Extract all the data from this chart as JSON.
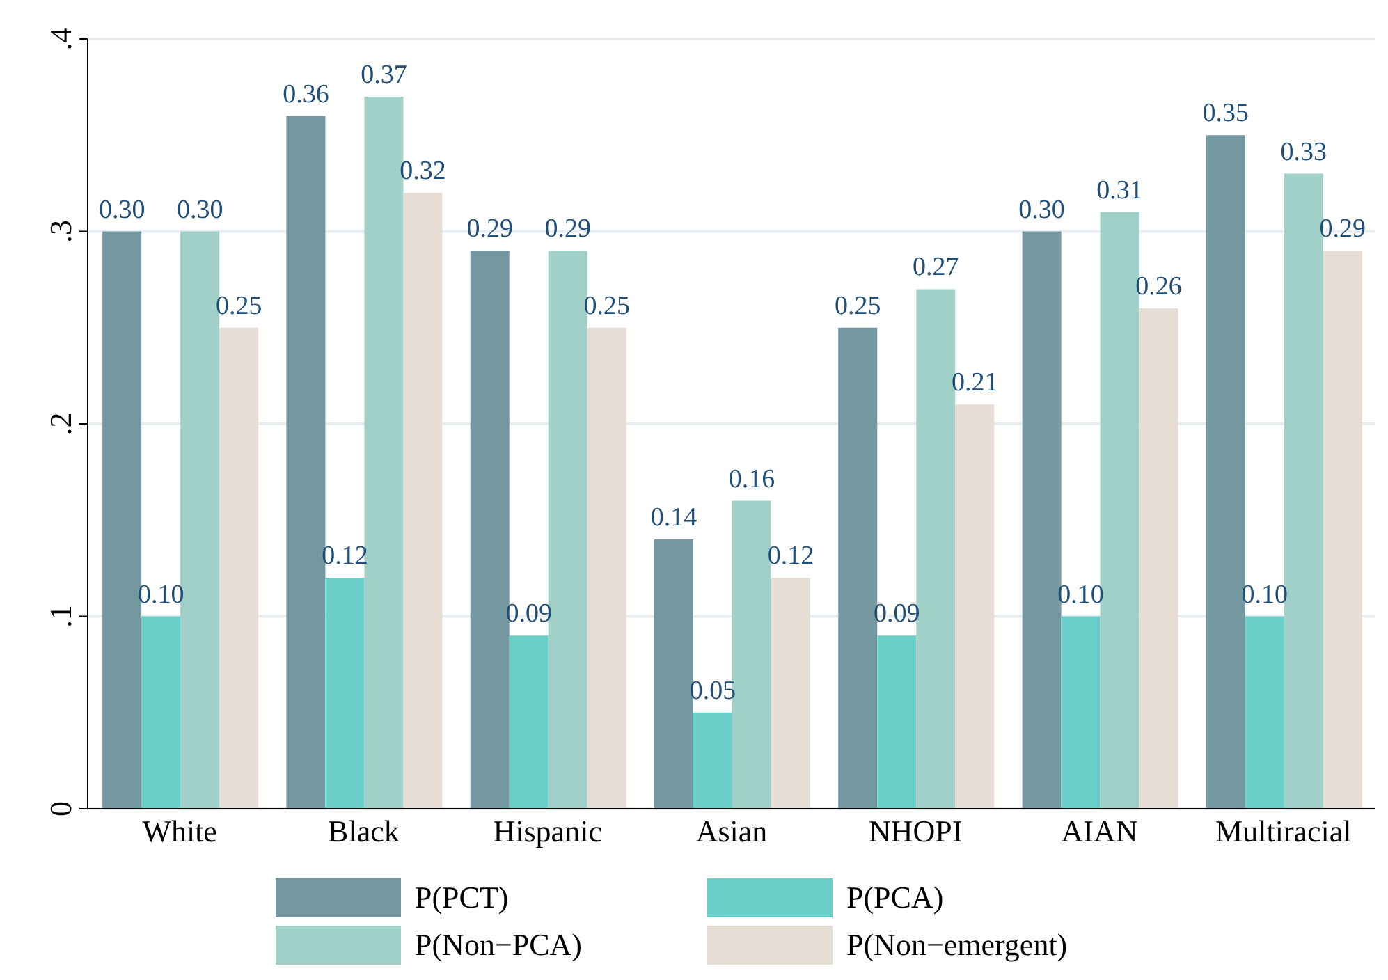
{
  "chart_data": {
    "type": "bar",
    "categories": [
      "White",
      "Black",
      "Hispanic",
      "Asian",
      "NHOPI",
      "AIAN",
      "Multiracial"
    ],
    "series": [
      {
        "name": "P(PCT)",
        "color": "#74989f",
        "values": [
          0.3,
          0.36,
          0.29,
          0.14,
          0.25,
          0.3,
          0.35
        ],
        "value_labels": [
          "0.30",
          "0.36",
          "0.29",
          "0.14",
          "0.25",
          "0.30",
          "0.35"
        ]
      },
      {
        "name": "P(PCA)",
        "color": "#6acfc9",
        "values": [
          0.1,
          0.12,
          0.09,
          0.05,
          0.09,
          0.1,
          0.1
        ],
        "value_labels": [
          "0.10",
          "0.12",
          "0.09",
          "0.05",
          "0.09",
          "0.10",
          "0.10"
        ]
      },
      {
        "name": "P(Non−PCA)",
        "color": "#a0d0c8",
        "values": [
          0.3,
          0.37,
          0.29,
          0.16,
          0.27,
          0.31,
          0.33
        ],
        "value_labels": [
          "0.30",
          "0.37",
          "0.29",
          "0.16",
          "0.27",
          "0.31",
          "0.33"
        ]
      },
      {
        "name": "P(Non−emergent)",
        "color": "#e6ded5",
        "values": [
          0.25,
          0.32,
          0.25,
          0.12,
          0.21,
          0.26,
          0.29
        ],
        "value_labels": [
          "0.25",
          "0.32",
          "0.25",
          "0.12",
          "0.21",
          "0.26",
          "0.29"
        ]
      }
    ],
    "ylim": [
      0,
      0.4
    ],
    "yticks": [
      0,
      {
        "value": 0.1,
        "label": ".1"
      },
      {
        "value": 0.2,
        "label": ".2"
      },
      {
        "value": 0.3,
        "label": ".3"
      },
      {
        "value": 0.4,
        "label": ".4"
      }
    ],
    "grid": "y",
    "legend": "bottom"
  }
}
